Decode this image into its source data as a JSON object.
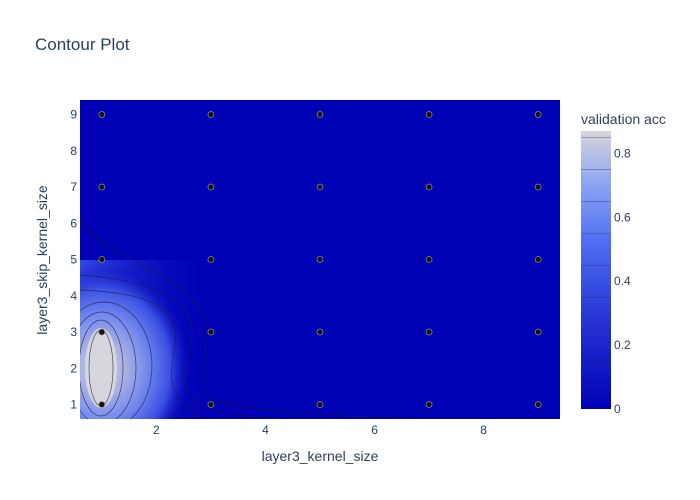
{
  "chart_data": {
    "type": "contour",
    "title": "Contour Plot",
    "xlabel": "layer3_kernel_size",
    "ylabel": "layer3_skip_kernel_size",
    "xlim": [
      0.6,
      9.4
    ],
    "ylim": [
      0.6,
      9.4
    ],
    "x_ticks": [
      2,
      4,
      6,
      8
    ],
    "y_ticks": [
      1,
      2,
      3,
      4,
      5,
      6,
      7,
      8,
      9
    ],
    "colorbar": {
      "title": "validation acc",
      "ticks": [
        0,
        0.2,
        0.4,
        0.6,
        0.8
      ],
      "range": [
        0,
        0.87
      ],
      "colors": [
        "#0000b4",
        "#3c4ce8",
        "#6a88f5",
        "#d3d3d8"
      ]
    },
    "trials": [
      {
        "x": 1,
        "y": 9
      },
      {
        "x": 3,
        "y": 9
      },
      {
        "x": 5,
        "y": 9
      },
      {
        "x": 7,
        "y": 9
      },
      {
        "x": 9,
        "y": 9
      },
      {
        "x": 1,
        "y": 7
      },
      {
        "x": 3,
        "y": 7
      },
      {
        "x": 5,
        "y": 7
      },
      {
        "x": 7,
        "y": 7
      },
      {
        "x": 9,
        "y": 7
      },
      {
        "x": 1,
        "y": 5
      },
      {
        "x": 3,
        "y": 5
      },
      {
        "x": 5,
        "y": 5
      },
      {
        "x": 7,
        "y": 5
      },
      {
        "x": 9,
        "y": 5
      },
      {
        "x": 1,
        "y": 3
      },
      {
        "x": 3,
        "y": 3
      },
      {
        "x": 5,
        "y": 3
      },
      {
        "x": 7,
        "y": 3
      },
      {
        "x": 9,
        "y": 3
      },
      {
        "x": 1,
        "y": 1
      },
      {
        "x": 3,
        "y": 1
      },
      {
        "x": 5,
        "y": 1
      },
      {
        "x": 7,
        "y": 1
      },
      {
        "x": 9,
        "y": 1
      }
    ],
    "peak": {
      "x": 1,
      "y": 2,
      "value": 0.87
    }
  }
}
